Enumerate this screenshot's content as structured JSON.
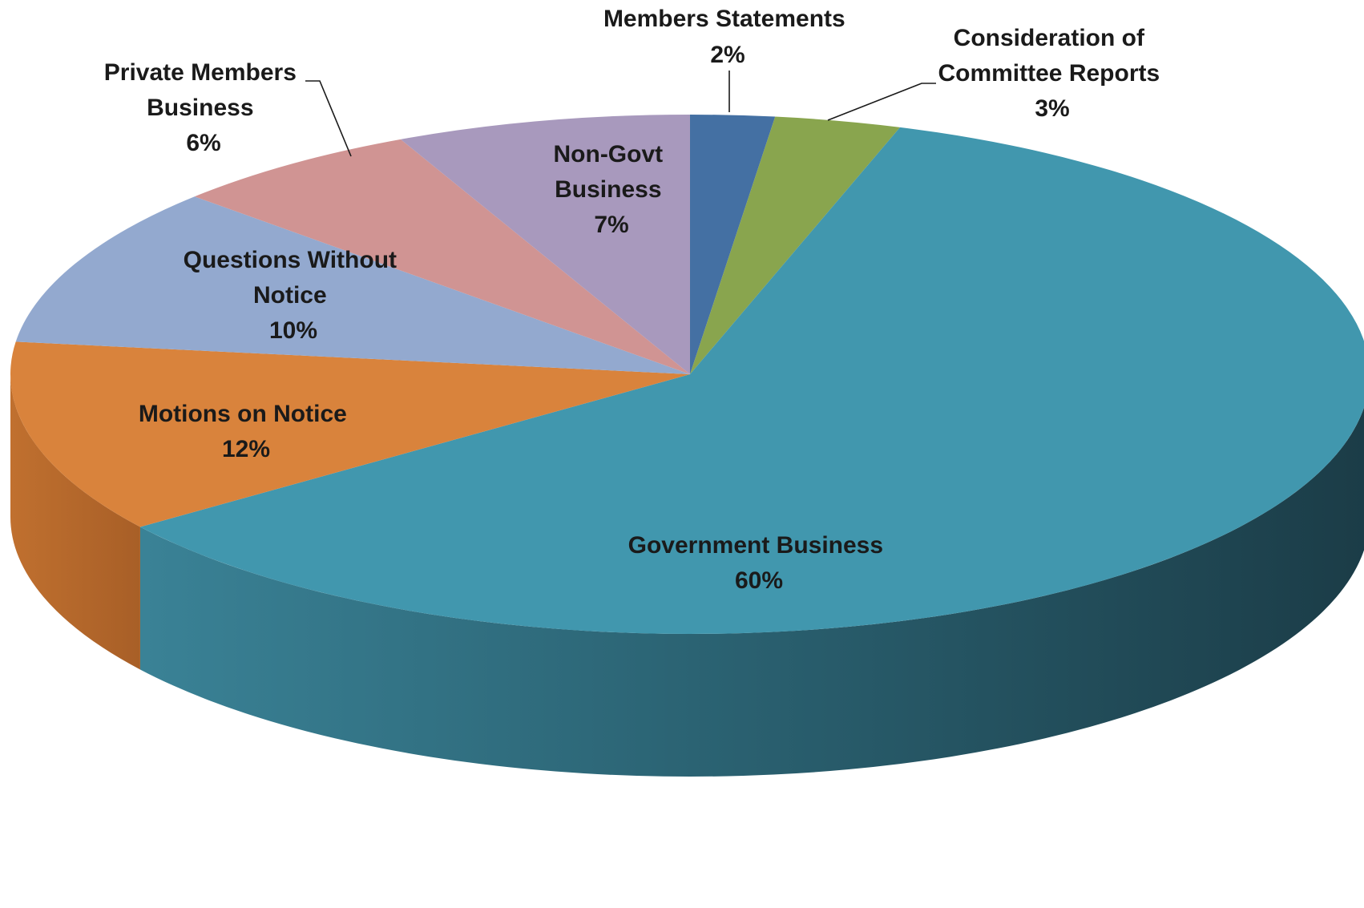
{
  "chart_data": {
    "type": "pie",
    "style": "3d",
    "title": "",
    "unit": "%",
    "slices": [
      {
        "name": "Members Statements",
        "value": 2,
        "label_pct": "2%",
        "color": "#4470a3"
      },
      {
        "name": "Consideration of Committee Reports",
        "value": 3,
        "label_pct": "3%",
        "color": "#89a54e"
      },
      {
        "name": "Government Business",
        "value": 60,
        "label_pct": "60%",
        "color": "#4197ae"
      },
      {
        "name": "Motions on Notice",
        "value": 12,
        "label_pct": "12%",
        "color": "#d9833c"
      },
      {
        "name": "Questions Without Notice",
        "value": 10,
        "label_pct": "10%",
        "color": "#93a9cf"
      },
      {
        "name": "Private Members Business",
        "value": 6,
        "label_pct": "6%",
        "color": "#d09493"
      },
      {
        "name": "Non-Govt Business",
        "value": 7,
        "label_pct": "7%",
        "color": "#a899bd"
      }
    ]
  }
}
